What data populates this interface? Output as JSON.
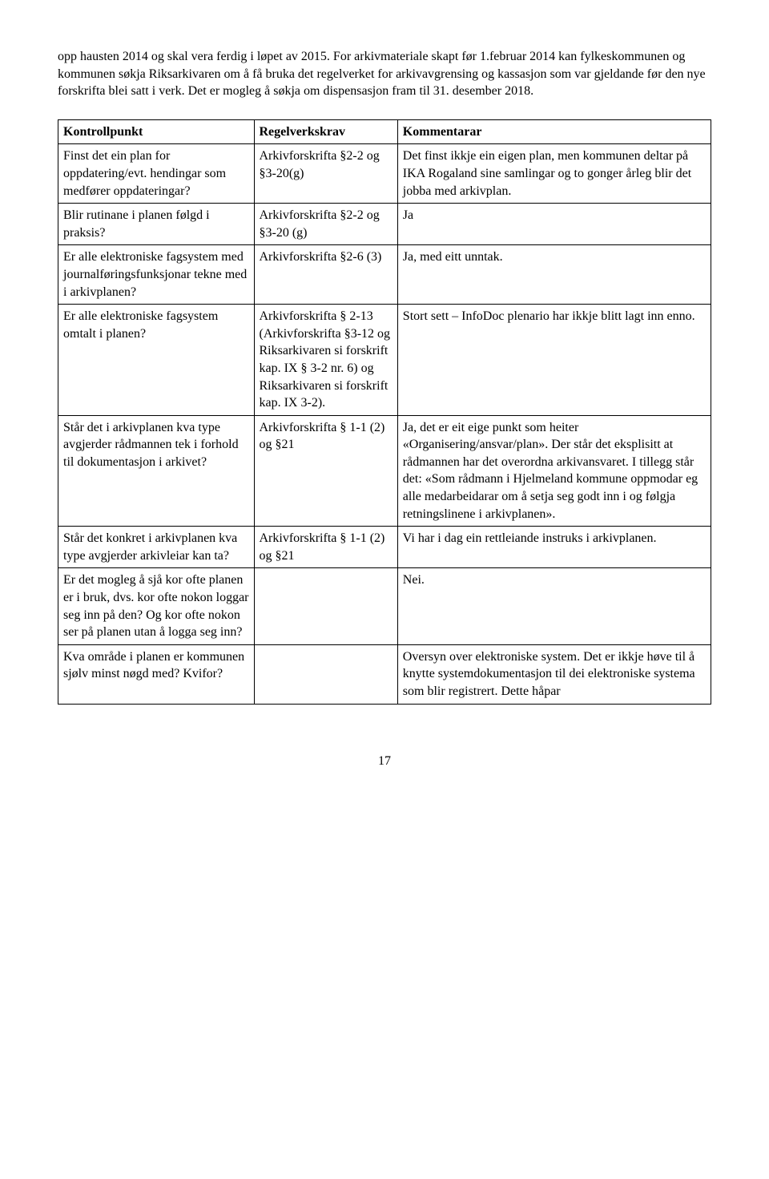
{
  "intro": {
    "p1": "opp hausten 2014 og skal vera ferdig i løpet av 2015. For arkivmateriale skapt før 1.februar 2014 kan fylkeskommunen og kommunen søkja Riksarkivaren om å få bruka det regelverket for arkivavgrensing og kassasjon som var gjeldande før den nye forskrifta blei satt i verk. Det er mogleg å søkja om dispensasjon fram til 31. desember 2018."
  },
  "table": {
    "headers": [
      "Kontrollpunkt",
      "Regelverkskrav",
      "Kommentarar"
    ],
    "rows": [
      {
        "c0": "Finst det ein plan for oppdatering/evt. hendingar som medfører oppdateringar?",
        "c1": "Arkivforskrifta §2-2 og §3-20(g)",
        "c2": "Det finst ikkje ein eigen plan, men kommunen deltar på IKA Rogaland sine samlingar og to gonger årleg blir det jobba med arkivplan."
      },
      {
        "c0": "Blir rutinane i planen følgd i praksis?",
        "c1": "Arkivforskrifta §2-2 og §3-20 (g)",
        "c2": "Ja"
      },
      {
        "c0": "Er alle elektroniske fagsystem med journalføringsfunksjonar tekne med i arkivplanen?",
        "c1": "Arkivforskrifta §2-6 (3)",
        "c2": "Ja, med eitt unntak."
      },
      {
        "c0": "Er alle elektroniske fagsystem omtalt i planen?",
        "c1": "Arkivforskrifta § 2-13 (Arkivforskrifta §3-12 og Riksarkivaren si forskrift kap. IX § 3-2 nr. 6) og Riksarkivaren si forskrift kap. IX 3-2).",
        "c2": "Stort sett – InfoDoc plenario har ikkje blitt lagt inn enno."
      },
      {
        "c0": "Står det i arkivplanen kva type avgjerder rådmannen tek i forhold til dokumentasjon i arkivet?",
        "c1": "Arkivforskrifta § 1-1 (2) og §21",
        "c2": "Ja, det er eit eige punkt som heiter «Organisering/ansvar/plan». Der står det eksplisitt at rådmannen har det overordna arkivansvaret. I tillegg står det: «Som rådmann i Hjelmeland kommune oppmodar eg alle medarbeidarar om å setja seg godt inn i og følgja retningslinene i arkivplanen»."
      },
      {
        "c0": "Står det konkret i arkivplanen kva type avgjerder arkivleiar kan ta?",
        "c1": "Arkivforskrifta § 1-1 (2) og §21",
        "c2": "Vi har i dag ein rettleiande instruks i arkivplanen."
      },
      {
        "c0": "Er det mogleg å sjå kor ofte planen er i bruk, dvs. kor ofte nokon loggar seg inn på den? Og kor ofte nokon ser på planen utan å logga seg inn?",
        "c1": "",
        "c2": "Nei."
      },
      {
        "c0": "Kva område i planen er kommunen sjølv minst nøgd med? Kvifor?",
        "c1": "",
        "c2": "Oversyn over elektroniske system. Det er ikkje høve til å knytte systemdokumentasjon til dei elektroniske systema som blir registrert. Dette håpar"
      }
    ]
  },
  "pageNumber": "17"
}
